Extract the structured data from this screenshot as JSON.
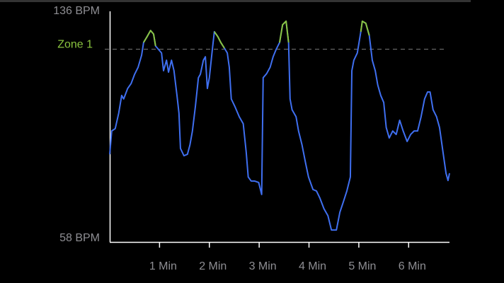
{
  "chart_data": {
    "type": "line",
    "x": [
      0.0,
      0.04,
      0.11,
      0.18,
      0.24,
      0.28,
      0.36,
      0.43,
      0.5,
      0.57,
      0.64,
      0.68,
      0.75,
      0.82,
      0.88,
      0.92,
      0.98,
      1.04,
      1.08,
      1.14,
      1.18,
      1.24,
      1.29,
      1.35,
      1.39,
      1.42,
      1.49,
      1.56,
      1.61,
      1.66,
      1.72,
      1.78,
      1.82,
      1.88,
      1.92,
      1.96,
      2.0,
      2.06,
      2.1,
      2.17,
      2.23,
      2.3,
      2.36,
      2.4,
      2.44,
      2.51,
      2.6,
      2.68,
      2.74,
      2.78,
      2.84,
      2.91,
      2.99,
      3.05,
      3.08,
      3.15,
      3.22,
      3.28,
      3.34,
      3.41,
      3.47,
      3.54,
      3.59,
      3.62,
      3.66,
      3.74,
      3.79,
      3.86,
      3.93,
      3.99,
      4.08,
      4.15,
      4.22,
      4.3,
      4.38,
      4.45,
      4.55,
      4.62,
      4.69,
      4.76,
      4.83,
      4.86,
      4.9,
      4.97,
      5.04,
      5.07,
      5.14,
      5.21,
      5.27,
      5.33,
      5.38,
      5.44,
      5.5,
      5.55,
      5.61,
      5.68,
      5.75,
      5.82,
      5.89,
      5.97,
      6.04,
      6.11,
      6.18,
      6.25,
      6.32,
      6.38,
      6.43,
      6.49,
      6.56,
      6.62,
      6.69,
      6.75,
      6.79,
      6.82
    ],
    "series": [
      {
        "color": "#3f6ff0",
        "zone_color": "#8ac43f",
        "values": [
          86.9,
          94.9,
          95.7,
          101.0,
          107.1,
          105.9,
          109.5,
          111.2,
          114.4,
          116.8,
          120.9,
          125.3,
          127.3,
          129.4,
          128.2,
          124.1,
          122.9,
          121.7,
          115.6,
          119.2,
          115.1,
          119.2,
          115.6,
          107.1,
          101.0,
          88.9,
          86.4,
          86.9,
          90.1,
          94.9,
          103.4,
          113.2,
          114.4,
          119.2,
          120.4,
          109.5,
          113.2,
          122.9,
          129.0,
          127.3,
          125.3,
          123.4,
          121.7,
          116.8,
          105.9,
          103.4,
          99.8,
          97.4,
          87.6,
          79.1,
          77.7,
          77.7,
          77.2,
          73.1,
          113.2,
          114.6,
          116.8,
          120.4,
          122.9,
          125.3,
          131.4,
          132.6,
          125.3,
          105.9,
          102.2,
          99.8,
          94.9,
          90.1,
          84.0,
          79.1,
          74.8,
          74.3,
          71.8,
          68.2,
          65.8,
          60.9,
          60.9,
          67.0,
          70.6,
          74.3,
          79.1,
          115.6,
          119.2,
          121.7,
          129.0,
          132.6,
          131.9,
          127.7,
          119.2,
          115.6,
          110.7,
          107.1,
          104.7,
          96.1,
          92.5,
          94.9,
          93.7,
          98.6,
          94.9,
          91.3,
          93.7,
          94.9,
          94.9,
          99.8,
          105.9,
          108.3,
          108.3,
          102.2,
          99.8,
          96.1,
          87.6,
          80.4,
          77.9,
          80.4
        ]
      }
    ],
    "zone": {
      "label": "Zone 1",
      "value": 123,
      "color": "#8ac43f"
    },
    "xlim": [
      0,
      6.82
    ],
    "xticks": [
      {
        "value": 1,
        "label": "1 Min"
      },
      {
        "value": 2,
        "label": "2 Min"
      },
      {
        "value": 3,
        "label": "3 Min"
      },
      {
        "value": 4,
        "label": "4 Min"
      },
      {
        "value": 5,
        "label": "5 Min"
      },
      {
        "value": 6,
        "label": "6 Min"
      }
    ],
    "ylim": [
      58,
      136
    ],
    "yticks": [
      {
        "value": 58,
        "label": "58 BPM"
      },
      {
        "value": 136,
        "label": "136 BPM"
      }
    ]
  }
}
